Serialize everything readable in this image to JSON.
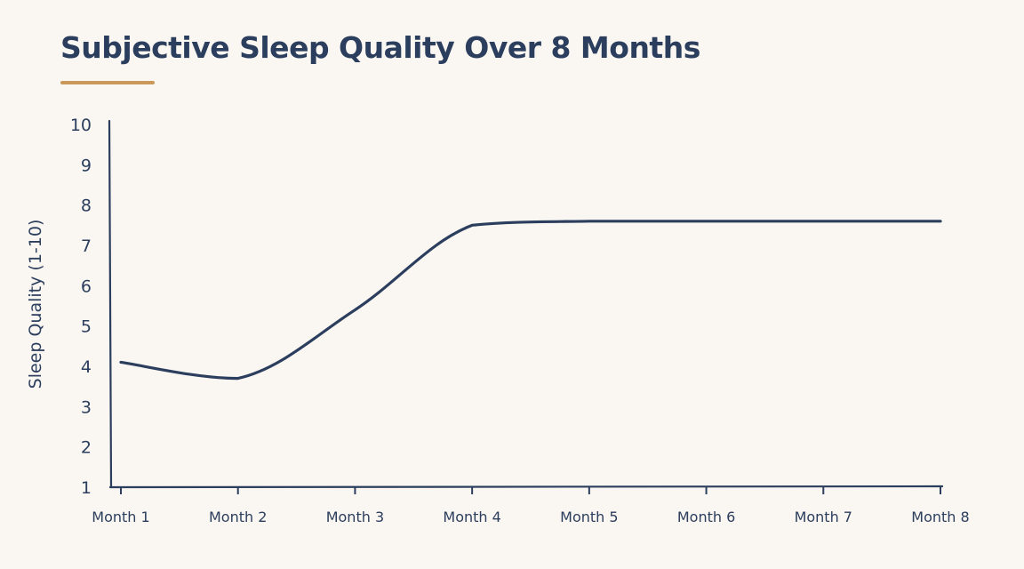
{
  "chart_data": {
    "type": "line",
    "title": "Subjective Sleep Quality Over 8 Months",
    "xlabel": "",
    "ylabel": "Sleep Quality (1-10)",
    "categories": [
      "Month 1",
      "Month 2",
      "Month 3",
      "Month 4",
      "Month 5",
      "Month 6",
      "Month 7",
      "Month 8"
    ],
    "series": [
      {
        "values": [
          4.1,
          3.7,
          5.4,
          7.5,
          7.6,
          7.6,
          7.6,
          7.6
        ]
      }
    ],
    "ylim": [
      1,
      10
    ],
    "yticks": [
      1,
      2,
      3,
      4,
      5,
      6,
      7,
      8,
      9,
      10
    ],
    "grid": false,
    "legend": "none"
  },
  "colors": {
    "line": "#2c3e5d",
    "axis": "#2c3e5d",
    "accent": "#c9985a",
    "background": "#faf7f2"
  }
}
